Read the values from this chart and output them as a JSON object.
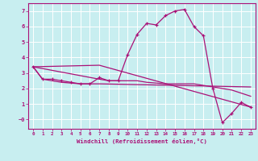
{
  "xlabel": "Windchill (Refroidissement éolien,°C)",
  "background_color": "#c8eef0",
  "line_color": "#aa1177",
  "grid_color": "#b0dde0",
  "xlim": [
    -0.5,
    23.5
  ],
  "ylim": [
    -0.6,
    7.5
  ],
  "series1_x": [
    0,
    1,
    2,
    3,
    4,
    5,
    6,
    7,
    8,
    9,
    10,
    11,
    12,
    13,
    14,
    15,
    16,
    17,
    18,
    19,
    20,
    21,
    22,
    23
  ],
  "series1_y": [
    3.4,
    2.6,
    2.6,
    2.5,
    2.4,
    2.3,
    2.3,
    2.7,
    2.5,
    2.5,
    4.2,
    5.5,
    6.2,
    6.1,
    6.7,
    7.0,
    7.1,
    6.0,
    5.4,
    2.0,
    -0.2,
    0.4,
    1.1,
    0.8
  ],
  "series2_x": [
    0,
    1,
    2,
    3,
    4,
    5,
    6,
    7,
    23
  ],
  "series2_y": [
    3.4,
    2.6,
    2.5,
    2.4,
    2.35,
    2.3,
    2.3,
    2.3,
    2.1
  ],
  "series3_x": [
    0,
    7,
    8,
    9,
    10,
    11,
    12,
    13,
    14,
    15,
    16,
    17,
    18,
    19,
    20,
    21,
    22,
    23
  ],
  "series3_y": [
    3.4,
    2.6,
    2.5,
    2.5,
    2.5,
    2.5,
    2.4,
    2.35,
    2.3,
    2.3,
    2.3,
    2.3,
    2.2,
    2.1,
    2.0,
    1.9,
    1.7,
    1.5
  ],
  "series4_x": [
    0,
    7,
    23
  ],
  "series4_y": [
    3.4,
    3.5,
    0.8
  ]
}
